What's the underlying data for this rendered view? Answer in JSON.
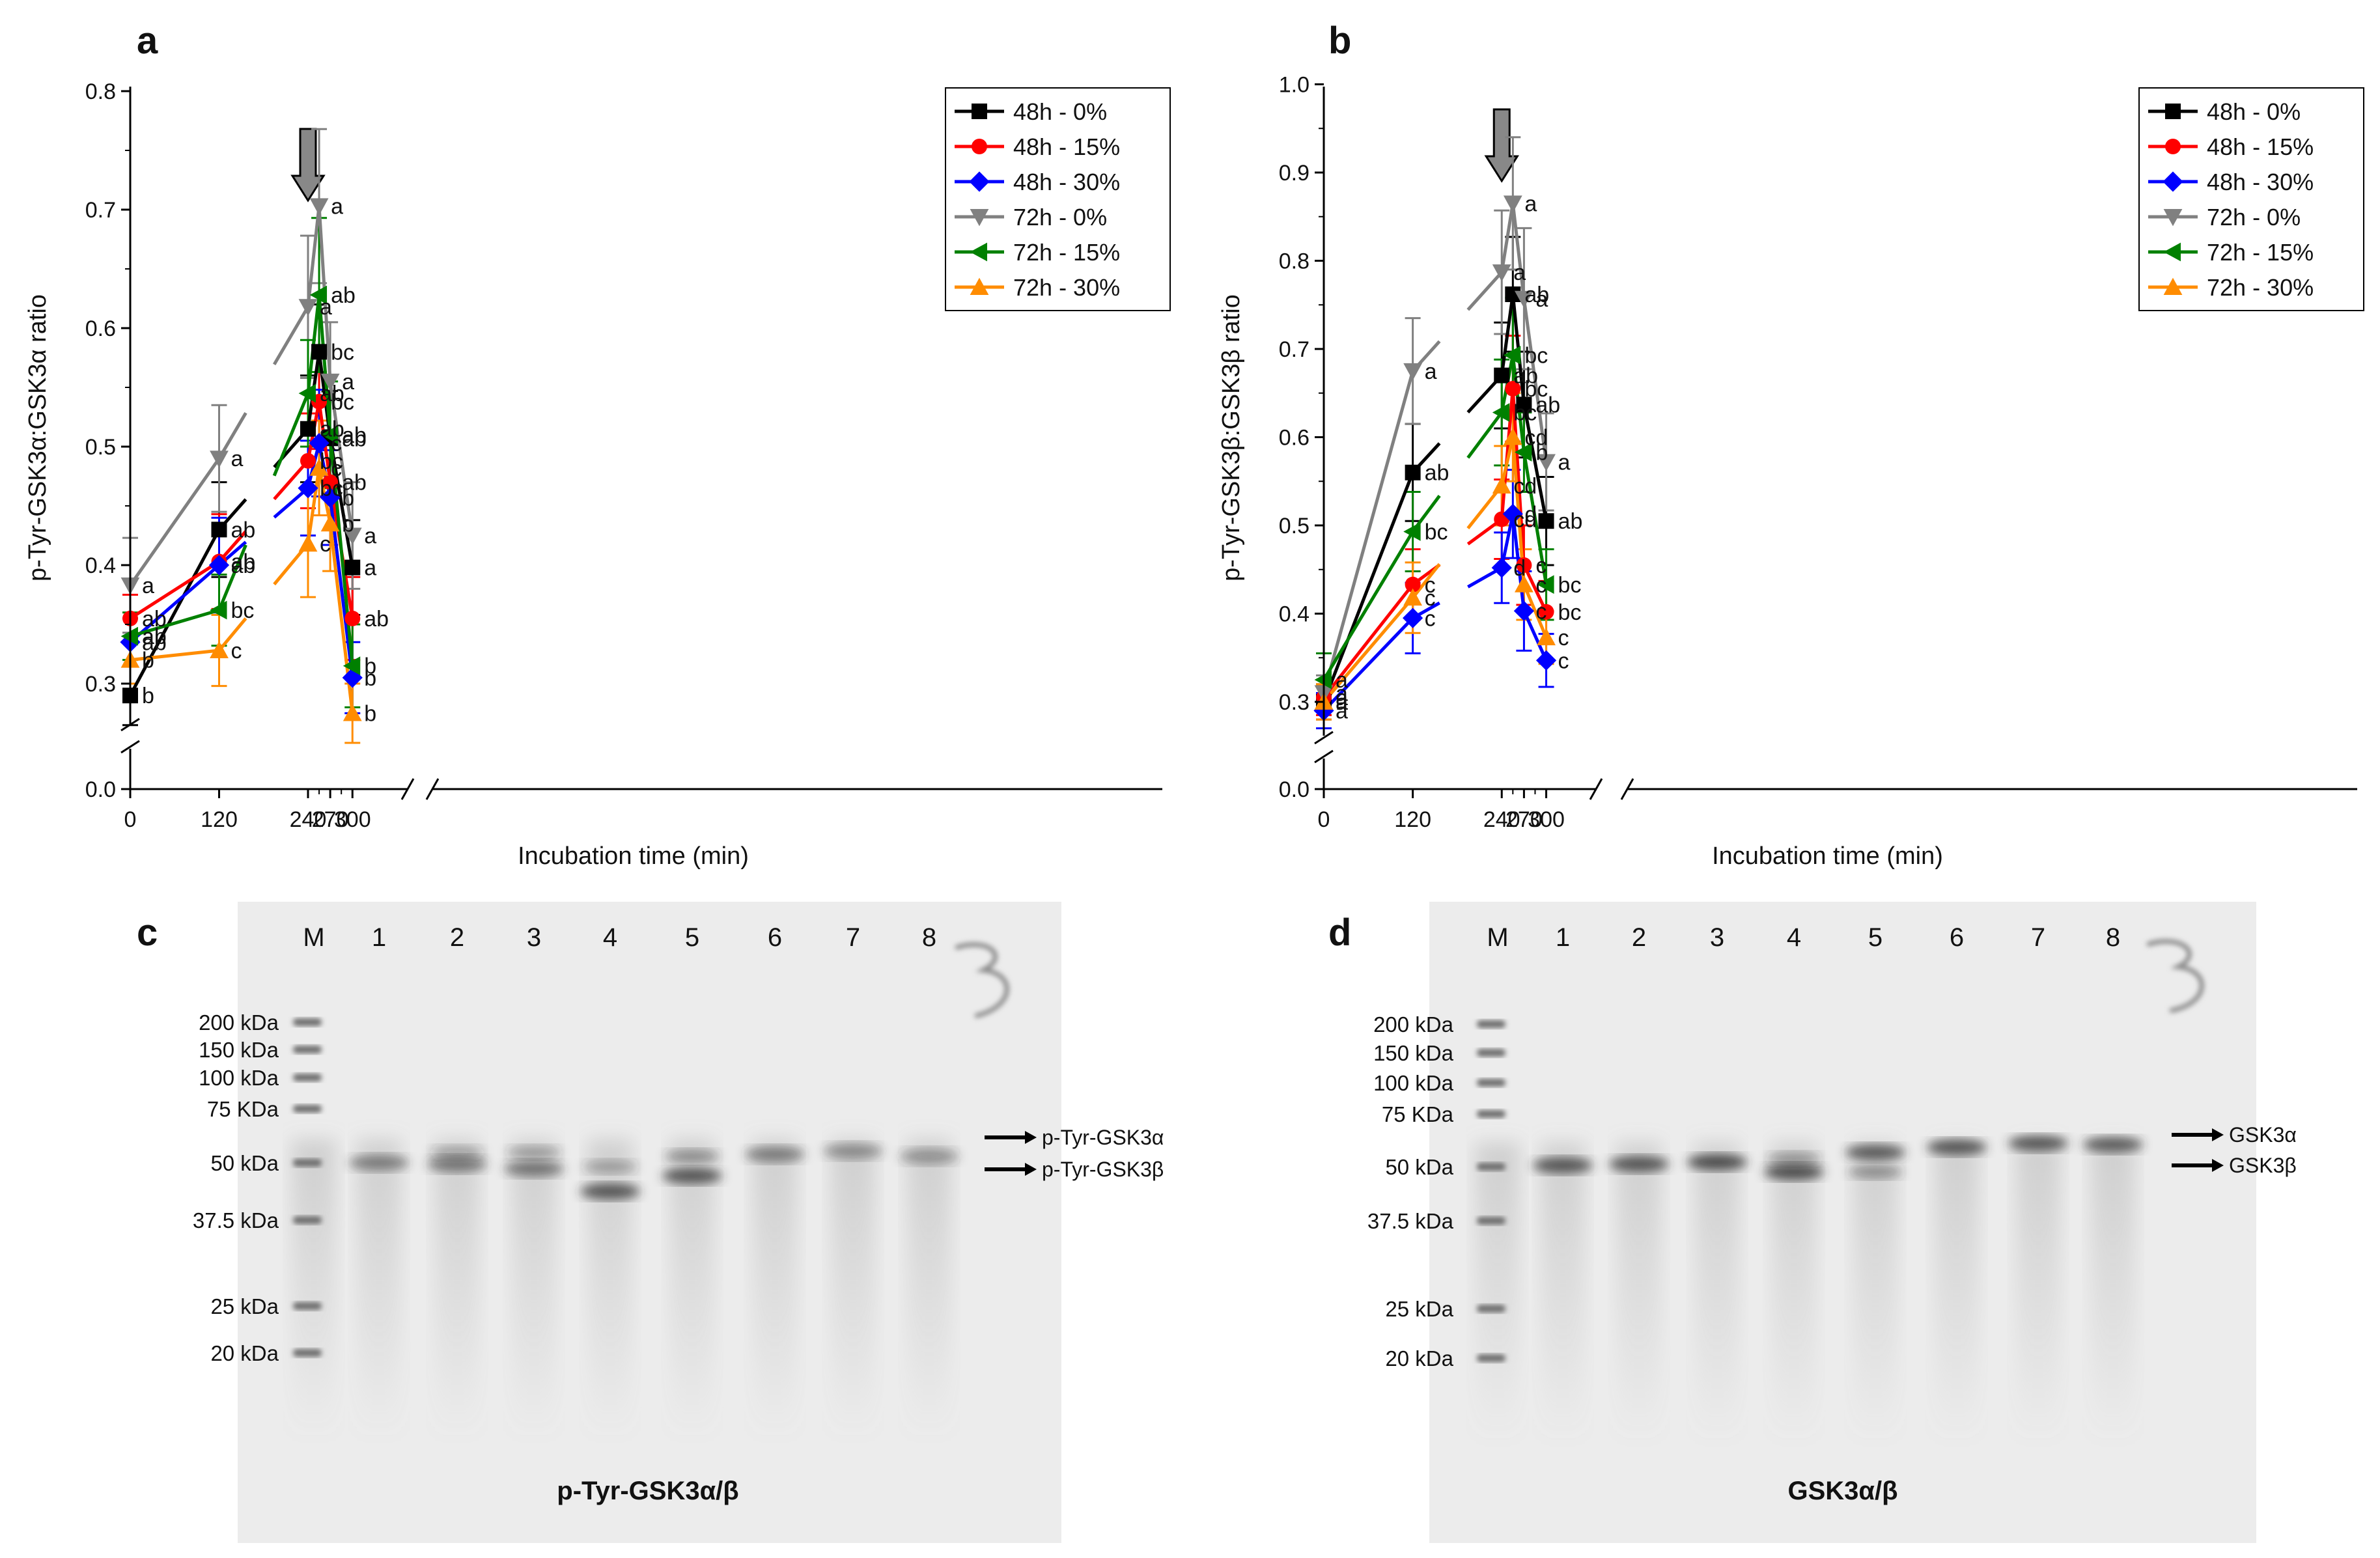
{
  "chart_data": [
    {
      "panel": "a",
      "type": "line",
      "ylabel": "p-Tyr-GSK3α:GSK3α ratio",
      "xlabel": "Incubation time (min)",
      "x_tick_labels": [
        "0",
        "120",
        "240",
        "270",
        "300"
      ],
      "y_tick_labels": [
        "0.0",
        "0.3",
        "0.4",
        "0.5",
        "0.6",
        "0.7",
        "0.8"
      ],
      "ylim": [
        0.3,
        0.8
      ],
      "y_axis_break": true,
      "x_axis_break": "between 120 and 240",
      "x": [
        0,
        120,
        240,
        255,
        270,
        300
      ],
      "arrow_at_x": 240,
      "legend_position": "top-right",
      "series": [
        {
          "name": "48h - 0%",
          "color": "#000000",
          "marker": "square",
          "values": [
            0.29,
            0.43,
            0.515,
            0.58,
            0.507,
            0.398
          ],
          "errors": [
            0.025,
            0.04,
            0.045,
            0.04,
            0.04,
            0.04
          ],
          "letters": [
            "b",
            "ab",
            "ab",
            "bc",
            "ab",
            "a"
          ]
        },
        {
          "name": "48h - 15%",
          "color": "#ff0000",
          "marker": "circle",
          "values": [
            0.355,
            0.403,
            0.488,
            0.538,
            0.47,
            0.355
          ],
          "errors": [
            0.02,
            0.04,
            0.04,
            0.04,
            0.04,
            0.035
          ],
          "letters": [
            "ab",
            "ab",
            "bc",
            "bc",
            "ab",
            "ab"
          ]
        },
        {
          "name": "48h - 30%",
          "color": "#0000ff",
          "marker": "diamond",
          "values": [
            0.335,
            0.4,
            0.465,
            0.503,
            0.457,
            0.305
          ],
          "errors": [
            0.02,
            0.04,
            0.04,
            0.045,
            0.04,
            0.03
          ],
          "letters": [
            "ab",
            "ab",
            "bc",
            "c",
            "b",
            "b"
          ]
        },
        {
          "name": "72h - 0%",
          "color": "#808080",
          "marker": "triangle-down",
          "values": [
            0.383,
            0.49,
            0.618,
            0.703,
            0.555,
            0.425
          ],
          "errors": [
            0.04,
            0.045,
            0.06,
            0.065,
            0.05,
            0.045
          ],
          "letters": [
            "a",
            "a",
            "a",
            "a",
            "a",
            "a"
          ]
        },
        {
          "name": "72h - 15%",
          "color": "#008000",
          "marker": "triangle-left",
          "values": [
            0.34,
            0.362,
            0.545,
            0.628,
            0.51,
            0.315
          ],
          "errors": [
            0.02,
            0.03,
            0.045,
            0.065,
            0.045,
            0.035
          ],
          "letters": [
            "ab",
            "bc",
            "ab",
            "ab",
            "ab",
            "b"
          ]
        },
        {
          "name": "72h - 30%",
          "color": "#ff8c00",
          "marker": "triangle-up",
          "values": [
            0.32,
            0.328,
            0.418,
            0.482,
            0.435,
            0.275
          ],
          "errors": [
            0.02,
            0.03,
            0.045,
            0.04,
            0.04,
            0.025
          ],
          "letters": [
            "b",
            "c",
            "c",
            "c",
            "b",
            "b"
          ]
        }
      ]
    },
    {
      "panel": "b",
      "type": "line",
      "ylabel": "p-Tyr-GSK3β:GSK3β ratio",
      "xlabel": "Incubation time (min)",
      "x_tick_labels": [
        "0",
        "120",
        "240",
        "270",
        "300"
      ],
      "y_tick_labels": [
        "0.0",
        "0.3",
        "0.4",
        "0.5",
        "0.6",
        "0.7",
        "0.8",
        "0.9",
        "1.0"
      ],
      "ylim": [
        0.3,
        1.0
      ],
      "y_axis_break": true,
      "x_axis_break": "between 120 and 240",
      "x": [
        0,
        120,
        240,
        255,
        270,
        300
      ],
      "arrow_at_x": 240,
      "legend_position": "top-right",
      "series": [
        {
          "name": "48h - 0%",
          "color": "#000000",
          "marker": "square",
          "values": [
            0.3,
            0.56,
            0.67,
            0.762,
            0.637,
            0.505
          ],
          "errors": [
            0.02,
            0.055,
            0.06,
            0.065,
            0.06,
            0.05
          ],
          "letters": [
            "a",
            "ab",
            "ab",
            "ab",
            "ab",
            "ab"
          ]
        },
        {
          "name": "48h - 15%",
          "color": "#ff0000",
          "marker": "circle",
          "values": [
            0.305,
            0.433,
            0.507,
            0.655,
            0.455,
            0.402
          ],
          "errors": [
            0.02,
            0.04,
            0.045,
            0.06,
            0.045,
            0.035
          ],
          "letters": [
            "a",
            "c",
            "cd",
            "bc",
            "c",
            "bc"
          ]
        },
        {
          "name": "48h - 30%",
          "color": "#0000ff",
          "marker": "diamond",
          "values": [
            0.29,
            0.395,
            0.452,
            0.513,
            0.403,
            0.347
          ],
          "errors": [
            0.02,
            0.04,
            0.04,
            0.05,
            0.045,
            0.03
          ],
          "letters": [
            "a",
            "c",
            "d",
            "d",
            "c",
            "c"
          ]
        },
        {
          "name": "72h - 0%",
          "color": "#808080",
          "marker": "triangle-down",
          "values": [
            0.31,
            0.675,
            0.787,
            0.865,
            0.757,
            0.572
          ],
          "errors": [
            0.02,
            0.06,
            0.07,
            0.075,
            0.08,
            0.055
          ],
          "letters": [
            "a",
            "a",
            "a",
            "a",
            "a",
            "a"
          ]
        },
        {
          "name": "72h - 15%",
          "color": "#008000",
          "marker": "triangle-left",
          "values": [
            0.325,
            0.493,
            0.628,
            0.693,
            0.583,
            0.433
          ],
          "errors": [
            0.03,
            0.045,
            0.06,
            0.065,
            0.045,
            0.04
          ],
          "letters": [
            "a",
            "bc",
            "bc",
            "bc",
            "b",
            "bc"
          ]
        },
        {
          "name": "72h - 30%",
          "color": "#ff8c00",
          "marker": "triangle-up",
          "values": [
            0.3,
            0.418,
            0.545,
            0.6,
            0.433,
            0.373
          ],
          "errors": [
            0.02,
            0.04,
            0.045,
            0.05,
            0.04,
            0.03
          ],
          "letters": [
            "a",
            "c",
            "cd",
            "cd",
            "c",
            "c"
          ]
        }
      ]
    }
  ],
  "panels": {
    "a": {
      "label": "a"
    },
    "b": {
      "label": "b"
    },
    "c": {
      "label": "c",
      "lane_labels": [
        "M",
        "1",
        "2",
        "3",
        "4",
        "5",
        "6",
        "7",
        "8"
      ],
      "mw_labels": [
        "200 kDa",
        "150 kDa",
        "100 kDa",
        "75 KDa",
        "50 kDa",
        "37.5 kDa",
        "25 kDa",
        "20 kDa"
      ],
      "band_labels": [
        "p-Tyr-GSK3α",
        "p-Tyr-GSK3β"
      ],
      "caption": "p-Tyr-GSK3α/β"
    },
    "d": {
      "label": "d",
      "lane_labels": [
        "M",
        "1",
        "2",
        "3",
        "4",
        "5",
        "6",
        "7",
        "8"
      ],
      "mw_labels": [
        "200 kDa",
        "150 kDa",
        "100 kDa",
        "75 KDa",
        "50 kDa",
        "37.5 kDa",
        "25 kDa",
        "20 kDa"
      ],
      "band_labels": [
        "GSK3α",
        "GSK3β"
      ],
      "caption": "GSK3α/β"
    }
  }
}
